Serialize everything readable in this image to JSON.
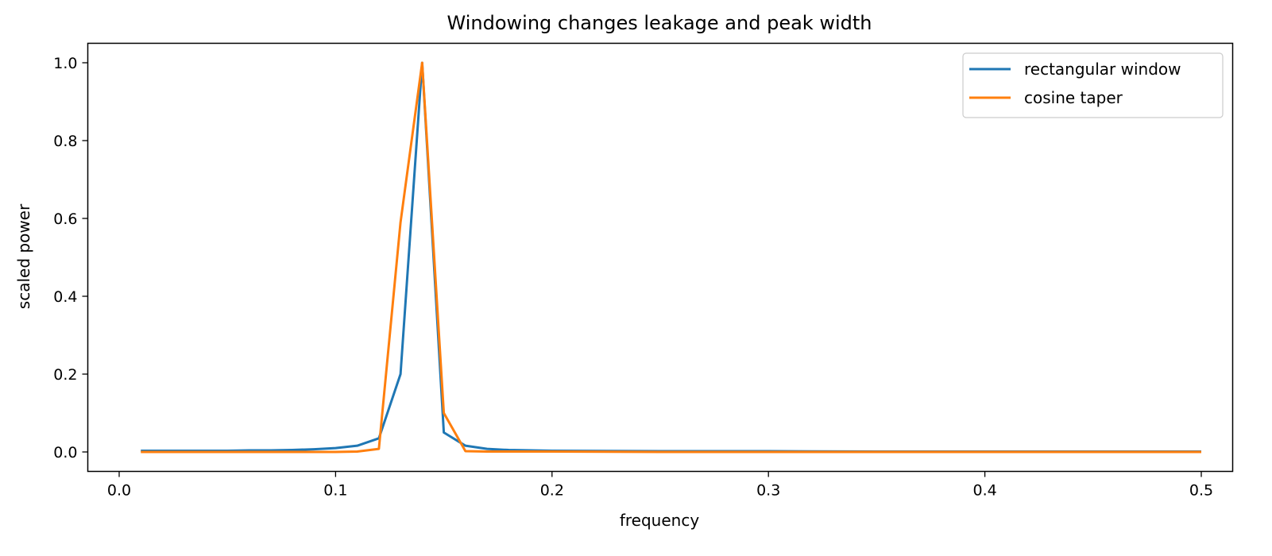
{
  "chart_data": {
    "type": "line",
    "title": "Windowing changes leakage and peak width",
    "xlabel": "frequency",
    "ylabel": "scaled power",
    "xlim": [
      -0.0145,
      0.5145
    ],
    "ylim": [
      -0.05,
      1.05
    ],
    "xticks": [
      0.0,
      0.1,
      0.2,
      0.3,
      0.4,
      0.5
    ],
    "xtick_labels": [
      "0.0",
      "0.1",
      "0.2",
      "0.3",
      "0.4",
      "0.5"
    ],
    "yticks": [
      0.0,
      0.2,
      0.4,
      0.6,
      0.8,
      1.0
    ],
    "ytick_labels": [
      "0.0",
      "0.2",
      "0.4",
      "0.6",
      "0.8",
      "1.0"
    ],
    "grid": false,
    "legend_position": "top-right",
    "series": [
      {
        "name": "rectangular window",
        "color": "#1f77b4",
        "x": [
          0.01,
          0.02,
          0.03,
          0.04,
          0.05,
          0.06,
          0.07,
          0.08,
          0.09,
          0.1,
          0.11,
          0.12,
          0.13,
          0.14,
          0.15,
          0.16,
          0.17,
          0.18,
          0.19,
          0.2,
          0.25,
          0.3,
          0.35,
          0.4,
          0.45,
          0.5
        ],
        "values": [
          0.003,
          0.003,
          0.003,
          0.003,
          0.003,
          0.004,
          0.004,
          0.005,
          0.007,
          0.01,
          0.016,
          0.035,
          0.2,
          1.0,
          0.05,
          0.016,
          0.008,
          0.005,
          0.004,
          0.003,
          0.002,
          0.002,
          0.001,
          0.001,
          0.001,
          0.001
        ]
      },
      {
        "name": "cosine taper",
        "color": "#ff7f0e",
        "x": [
          0.01,
          0.02,
          0.03,
          0.04,
          0.05,
          0.06,
          0.07,
          0.08,
          0.09,
          0.1,
          0.11,
          0.12,
          0.13,
          0.14,
          0.15,
          0.16,
          0.17,
          0.18,
          0.19,
          0.2,
          0.25,
          0.3,
          0.35,
          0.4,
          0.45,
          0.5
        ],
        "values": [
          0.0,
          0.0,
          0.0,
          0.0,
          0.0,
          0.0,
          0.0,
          0.0,
          0.0,
          0.0,
          0.001,
          0.008,
          0.59,
          1.0,
          0.1,
          0.002,
          0.001,
          0.001,
          0.001,
          0.001,
          0.0,
          0.0,
          0.0,
          0.0,
          0.0,
          0.0
        ]
      }
    ]
  }
}
